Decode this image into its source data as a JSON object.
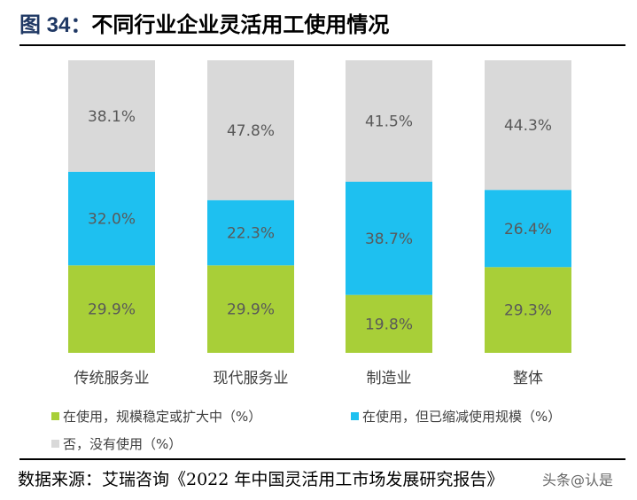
{
  "title": {
    "figure": "图 34：",
    "text": "不同行业企业灵活用工使用情况"
  },
  "chart_data": {
    "type": "bar",
    "stacked": true,
    "categories": [
      "传统服务业",
      "现代服务业",
      "制造业",
      "整体"
    ],
    "series": [
      {
        "name": "在使用，规模稳定或扩大中（%）",
        "values": [
          29.9,
          29.9,
          19.8,
          29.3
        ],
        "labels": [
          "29.9%",
          "29.9%",
          "19.8%",
          "29.3%"
        ],
        "color": "#a8cf38"
      },
      {
        "name": "在使用，但已缩减使用规模（%）",
        "values": [
          32.0,
          22.3,
          38.7,
          26.4
        ],
        "labels": [
          "32.0%",
          "22.3%",
          "38.7%",
          "26.4%"
        ],
        "color": "#1ec0f0"
      },
      {
        "name": "否，没有使用（%）",
        "values": [
          38.1,
          47.8,
          41.5,
          44.3
        ],
        "labels": [
          "38.1%",
          "47.8%",
          "41.5%",
          "44.3%"
        ],
        "color": "#d9d9d9"
      }
    ],
    "ylim": [
      0,
      100
    ],
    "grid": false,
    "legend_position": "bottom"
  },
  "source": "数据来源：艾瑞咨询《2022 年中国灵活用工市场发展研究报告》",
  "watermark": "头条@认是"
}
